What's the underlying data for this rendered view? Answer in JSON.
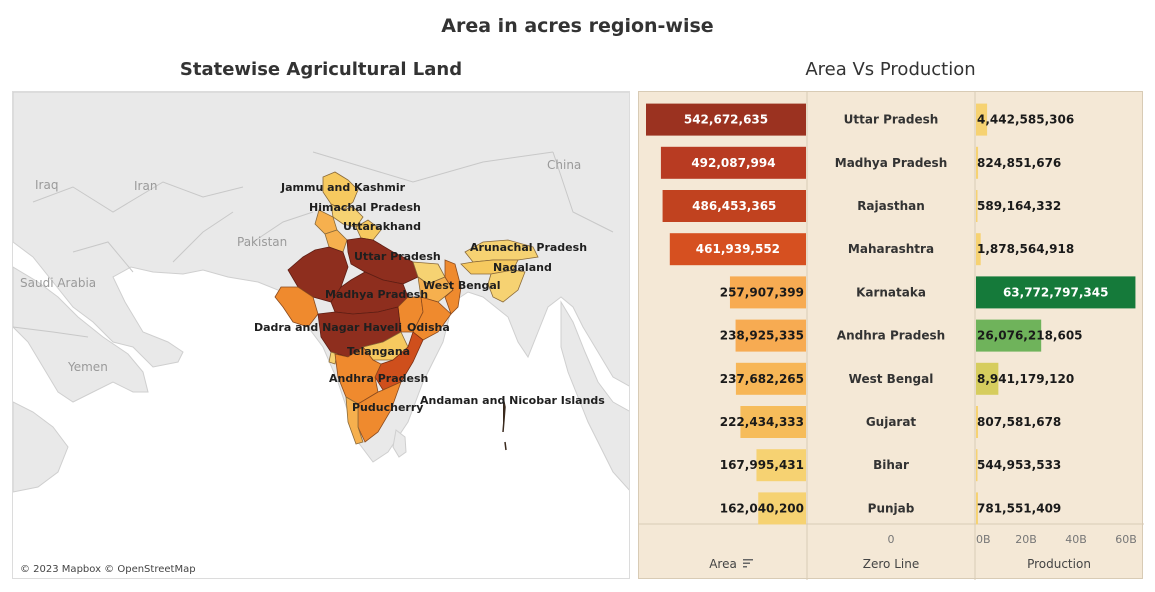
{
  "title": "Area in acres region-wise",
  "map": {
    "title": "Statewise Agricultural Land",
    "attribution": "© 2023 Mapbox © OpenStreetMap",
    "country_labels": [
      "China",
      "Iraq",
      "Iran",
      "Pakistan",
      "Saudi Arabia",
      "Yemen"
    ],
    "state_labels": [
      "Jammu and Kashmir",
      "Himachal Pradesh",
      "Uttarakhand",
      "Uttar Pradesh",
      "Arunachal Pradesh",
      "Nagaland",
      "Madhya Pradesh",
      "West Bengal",
      "Dadra and Nagar Haveli",
      "Odisha",
      "Telangana",
      "Andhra Pradesh",
      "Puducherry",
      "Andaman and Nicobar Islands"
    ],
    "colors": {
      "darkest": "#8e2e1e",
      "dark": "#cf4f1c",
      "medium": "#ef8a2e",
      "light": "#f6b04e",
      "lightest": "#f6d272"
    }
  },
  "chart": {
    "title": "Area Vs Production",
    "headers": {
      "area": "Area",
      "zero": "Zero Line",
      "production": "Production"
    },
    "zero_tick": "0",
    "prod_ticks": [
      "0B",
      "20B",
      "40B",
      "60B"
    ],
    "area_labels": [
      "542,672,635",
      "492,087,994",
      "486,453,365",
      "461,939,552",
      "257,907,399",
      "238,925,335",
      "237,682,265",
      "222,434,333",
      "167,995,431",
      "162,040,200"
    ],
    "production_labels": [
      "4,442,585,306",
      "824,851,676",
      "589,164,332",
      "1,878,564,918",
      "63,772,797,345",
      "26,076,218,605",
      "8,941,179,120",
      "807,581,678",
      "544,953,533",
      "781,551,409"
    ]
  },
  "chart_data": {
    "type": "bar",
    "categories": [
      "Uttar Pradesh",
      "Madhya Pradesh",
      "Rajasthan",
      "Maharashtra",
      "Karnataka",
      "Andhra Pradesh",
      "West Bengal",
      "Gujarat",
      "Bihar",
      "Punjab"
    ],
    "series": [
      {
        "name": "Area",
        "values": [
          542672635,
          492087994,
          486453365,
          461939552,
          257907399,
          238925335,
          237682265,
          222434333,
          167995431,
          162040200
        ]
      },
      {
        "name": "Production",
        "values": [
          4442585306,
          824851676,
          589164332,
          1878564918,
          63772797345,
          26076218605,
          8941179120,
          807581678,
          544953533,
          781551409
        ]
      }
    ],
    "area_colors": [
      "#9b3220",
      "#b83b22",
      "#c1421f",
      "#d65020",
      "#f7ab52",
      "#f7ab52",
      "#f7b656",
      "#f6bc5a",
      "#f6d272",
      "#f6d272"
    ],
    "production_colors": [
      "#f6d272",
      "#f6d272",
      "#f6d272",
      "#f6d272",
      "#157a3a",
      "#6fb35b",
      "#d6cd5e",
      "#f6d272",
      "#f6d272",
      "#f6d272"
    ],
    "production_axis": {
      "ticks": [
        0,
        20000000000,
        40000000000,
        60000000000
      ],
      "max": 64000000000
    }
  }
}
